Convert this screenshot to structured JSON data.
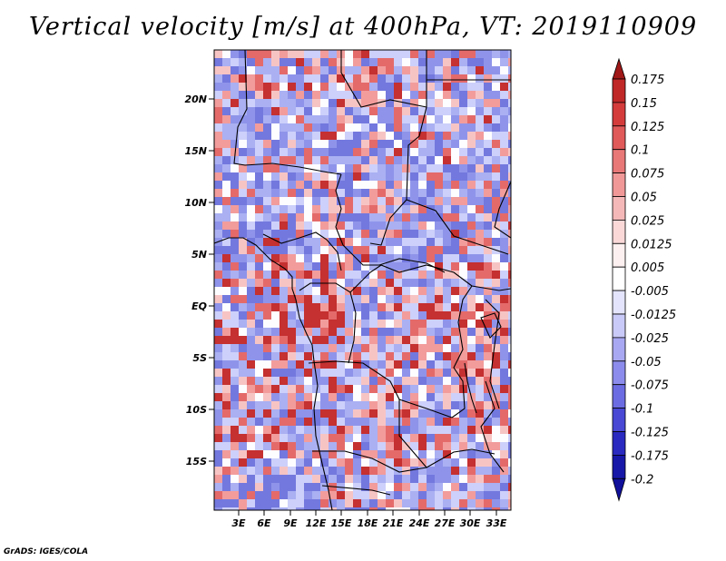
{
  "title": "Vertical velocity [m/s] at 400hPa, VT: 2019110909",
  "footer": "GrADS: IGES/COLA",
  "map": {
    "lat_labels": [
      "20N",
      "15N",
      "10N",
      "5N",
      "EQ",
      "5S",
      "10S",
      "15S"
    ],
    "lon_labels": [
      "3E",
      "6E",
      "9E",
      "12E",
      "15E",
      "18E",
      "21E",
      "24E",
      "27E",
      "30E",
      "33E"
    ]
  },
  "colorbar": {
    "labels": [
      "0.175",
      "0.15",
      "0.125",
      "0.1",
      "0.075",
      "0.05",
      "0.025",
      "0.0125",
      "0.005",
      "-0.005",
      "-0.0125",
      "-0.025",
      "-0.05",
      "-0.075",
      "-0.1",
      "-0.125",
      "-0.175",
      "-0.2"
    ],
    "colors": [
      "#a01818",
      "#c02828",
      "#d43c3c",
      "#e05a5a",
      "#e87878",
      "#f09898",
      "#f5b8b8",
      "#fad8d8",
      "#fdf0f0",
      "#ffffff",
      "#e4e4fc",
      "#cacaf8",
      "#a8a8f2",
      "#8c8cec",
      "#6c6ce2",
      "#4848d4",
      "#2a2ac0",
      "#1818a8",
      "#10109a"
    ]
  },
  "field": {
    "land": "#fdfdff",
    "positive": [
      "#f7c4c4",
      "#f29c9c",
      "#e46a6a",
      "#c53030"
    ],
    "negative": [
      "#cdd0fa",
      "#aab0f2",
      "#8f94ea",
      "#7378de"
    ]
  }
}
